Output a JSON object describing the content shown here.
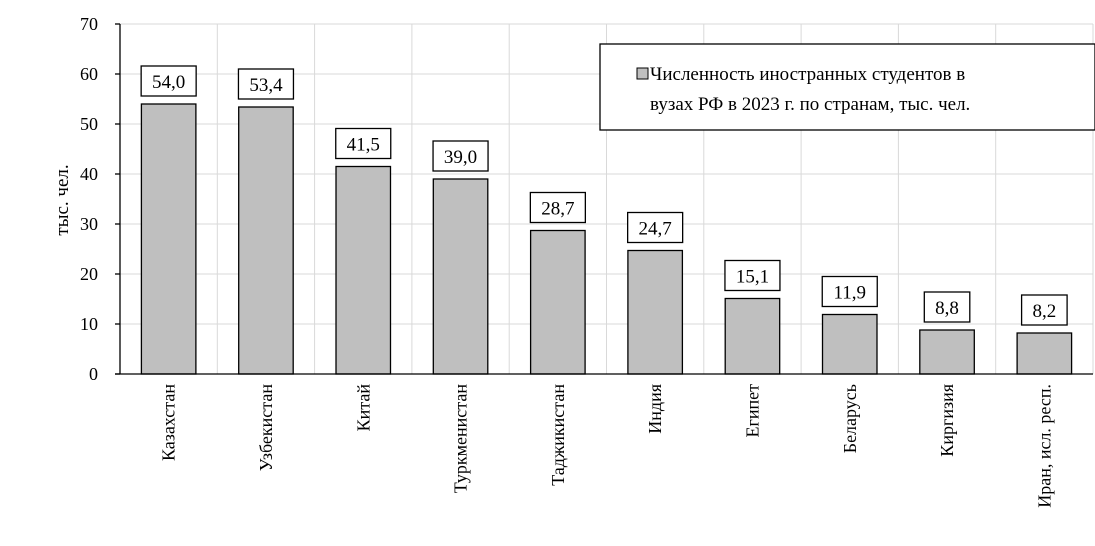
{
  "chart_data": {
    "type": "bar",
    "title": "",
    "xlabel": "",
    "ylabel": "тыс. чел.",
    "ylim": [
      0,
      70
    ],
    "yticks": [
      0,
      10,
      20,
      30,
      40,
      50,
      60,
      70
    ],
    "grid": true,
    "legend_position": "top-right",
    "categories": [
      "Казахстан",
      "Узбекистан",
      "Китай",
      "Туркменистан",
      "Таджикистан",
      "Индия",
      "Египет",
      "Беларусь",
      "Киргизия",
      "Иран, исл. респ."
    ],
    "series": [
      {
        "name": "Численность иностранных студентов в вузах РФ в 2023 г. по странам, тыс. чел.",
        "legend_lines": [
          "Численность иностранных студентов в",
          "вузах РФ в 2023 г. по странам, тыс. чел."
        ],
        "values": [
          54.0,
          53.4,
          41.5,
          39.0,
          28.7,
          24.7,
          15.1,
          11.9,
          8.8,
          8.2
        ],
        "value_labels": [
          "54,0",
          "53,4",
          "41,5",
          "39,0",
          "28,7",
          "24,7",
          "15,1",
          "11,9",
          "8,8",
          "8,2"
        ],
        "color": "#bfbfbf"
      }
    ]
  }
}
